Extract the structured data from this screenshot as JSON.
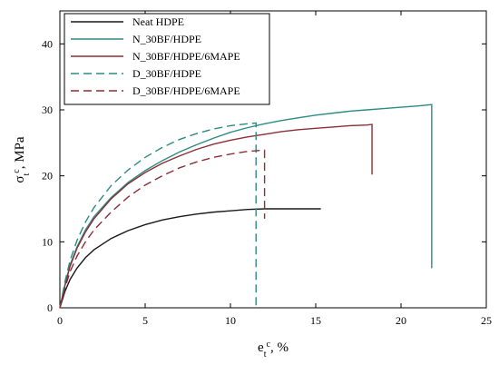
{
  "chart_data": {
    "type": "line",
    "xlabel": {
      "main": "e",
      "sub": "t",
      "sup": "c",
      "unit": ", %"
    },
    "ylabel": {
      "main": "σ",
      "sub": "t",
      "sup": "c",
      "unit": ", MPa"
    },
    "xlim": [
      0,
      25
    ],
    "ylim": [
      0,
      45
    ],
    "xticks": [
      0,
      5,
      10,
      15,
      20,
      25
    ],
    "yticks": [
      0,
      10,
      20,
      30,
      40
    ],
    "grid": false,
    "legend_position": "top-left",
    "series": [
      {
        "name": "Neat HDPE",
        "color": "#1a1a1a",
        "dash": "solid",
        "points": [
          [
            0,
            0
          ],
          [
            0.3,
            2.5
          ],
          [
            0.6,
            4.3
          ],
          [
            1,
            6
          ],
          [
            1.5,
            7.6
          ],
          [
            2,
            8.8
          ],
          [
            3,
            10.5
          ],
          [
            4,
            11.7
          ],
          [
            5,
            12.6
          ],
          [
            6,
            13.3
          ],
          [
            7,
            13.8
          ],
          [
            8,
            14.2
          ],
          [
            9,
            14.5
          ],
          [
            10,
            14.7
          ],
          [
            11,
            14.9
          ],
          [
            12,
            15.0
          ],
          [
            13,
            15.0
          ],
          [
            14,
            15.0
          ],
          [
            15,
            15.0
          ],
          [
            15.3,
            15.0
          ]
        ]
      },
      {
        "name": "N_30BF/HDPE",
        "color": "#2e8b84",
        "dash": "solid",
        "points": [
          [
            0,
            0
          ],
          [
            0.3,
            3.5
          ],
          [
            0.6,
            6.5
          ],
          [
            1,
            9.2
          ],
          [
            1.5,
            11.8
          ],
          [
            2,
            13.8
          ],
          [
            3,
            16.7
          ],
          [
            4,
            19
          ],
          [
            5,
            20.8
          ],
          [
            6,
            22.3
          ],
          [
            7,
            23.6
          ],
          [
            8,
            24.7
          ],
          [
            9,
            25.7
          ],
          [
            10,
            26.6
          ],
          [
            11,
            27.3
          ],
          [
            12,
            27.9
          ],
          [
            13,
            28.4
          ],
          [
            14,
            28.8
          ],
          [
            15,
            29.2
          ],
          [
            16,
            29.5
          ],
          [
            17,
            29.8
          ],
          [
            18,
            30.0
          ],
          [
            19,
            30.2
          ],
          [
            20,
            30.4
          ],
          [
            21,
            30.6
          ],
          [
            21.8,
            30.8
          ],
          [
            21.8,
            6
          ]
        ]
      },
      {
        "name": "N_30BF/HDPE/6MAPE",
        "color": "#8b2e35",
        "dash": "solid",
        "points": [
          [
            0,
            0
          ],
          [
            0.3,
            3.4
          ],
          [
            0.6,
            6.3
          ],
          [
            1,
            9
          ],
          [
            1.5,
            11.5
          ],
          [
            2,
            13.5
          ],
          [
            3,
            16.5
          ],
          [
            4,
            18.8
          ],
          [
            5,
            20.5
          ],
          [
            6,
            21.9
          ],
          [
            7,
            23
          ],
          [
            8,
            24
          ],
          [
            9,
            24.8
          ],
          [
            10,
            25.4
          ],
          [
            11,
            25.9
          ],
          [
            12,
            26.3
          ],
          [
            13,
            26.7
          ],
          [
            14,
            27
          ],
          [
            15,
            27.2
          ],
          [
            16,
            27.4
          ],
          [
            17,
            27.6
          ],
          [
            18,
            27.7
          ],
          [
            18.3,
            27.8
          ],
          [
            18.3,
            20.2
          ]
        ]
      },
      {
        "name": "D_30BF/HDPE",
        "color": "#2e8b84",
        "dash": "dashed",
        "points": [
          [
            0,
            0
          ],
          [
            0.3,
            4
          ],
          [
            0.6,
            7.2
          ],
          [
            1,
            10.2
          ],
          [
            1.5,
            13
          ],
          [
            2,
            15.2
          ],
          [
            3,
            18.5
          ],
          [
            4,
            20.9
          ],
          [
            5,
            22.8
          ],
          [
            6,
            24.3
          ],
          [
            7,
            25.5
          ],
          [
            8,
            26.4
          ],
          [
            9,
            27.1
          ],
          [
            10,
            27.6
          ],
          [
            11,
            27.9
          ],
          [
            11.5,
            28.0
          ],
          [
            11.5,
            0
          ]
        ]
      },
      {
        "name": "D_30BF/HDPE/6MAPE",
        "color": "#8b2e35",
        "dash": "dashed",
        "points": [
          [
            0,
            0
          ],
          [
            0.3,
            3
          ],
          [
            0.6,
            5.5
          ],
          [
            1,
            7.8
          ],
          [
            1.5,
            10
          ],
          [
            2,
            11.8
          ],
          [
            3,
            14.5
          ],
          [
            4,
            16.8
          ],
          [
            5,
            18.6
          ],
          [
            6,
            20
          ],
          [
            7,
            21.2
          ],
          [
            8,
            22.1
          ],
          [
            9,
            22.8
          ],
          [
            10,
            23.3
          ],
          [
            11,
            23.7
          ],
          [
            12,
            23.9
          ],
          [
            12,
            13.5
          ]
        ]
      }
    ]
  }
}
